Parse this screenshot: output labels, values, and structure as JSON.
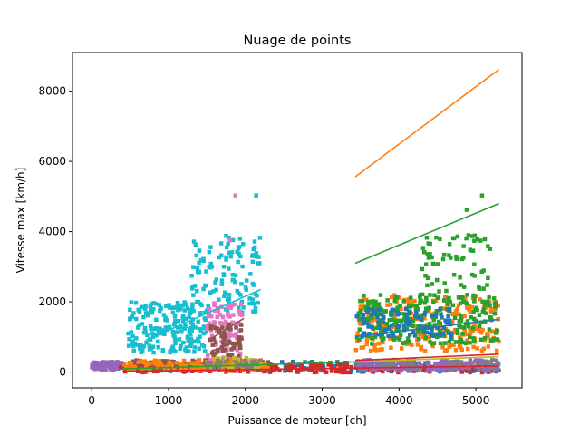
{
  "chart_data": {
    "type": "scatter",
    "title": "Nuage de points",
    "xlabel": "Puissance de moteur [ch]",
    "ylabel": "Vitesse max [km/h]",
    "xlim": [
      -250,
      5600
    ],
    "ylim": [
      -450,
      9100
    ],
    "xticks": [
      0,
      1000,
      2000,
      3000,
      4000,
      5000
    ],
    "yticks": [
      0,
      2000,
      4000,
      6000,
      8000
    ],
    "grid": false,
    "palette": {
      "blue": "#1f77b4",
      "orange": "#ff7f0e",
      "green": "#2ca02c",
      "red": "#d62728",
      "purple": "#9467bd",
      "brown": "#8c564b",
      "pink": "#e377c2",
      "gray": "#7f7f7f",
      "olive": "#bcbd22",
      "cyan": "#17becf"
    },
    "clusters": [
      {
        "color": "purple",
        "x_range": [
          0,
          420
        ],
        "y_range": [
          60,
          290
        ],
        "n": 90
      },
      {
        "color": "cyan",
        "x_range": [
          470,
          1500
        ],
        "y_range": [
          550,
          2000
        ],
        "n": 190
      },
      {
        "color": "cyan",
        "x_range": [
          1300,
          2200
        ],
        "y_range": [
          1700,
          3900
        ],
        "n": 120
      },
      {
        "color": "pink",
        "x_range": [
          1500,
          1960
        ],
        "y_range": [
          280,
          2000
        ],
        "n": 110
      },
      {
        "color": "brown",
        "x_range": [
          1540,
          1960
        ],
        "y_range": [
          400,
          1400
        ],
        "n": 50
      },
      {
        "color": "orange",
        "x_range": [
          3430,
          5300
        ],
        "y_range": [
          600,
          2200
        ],
        "n": 220
      },
      {
        "color": "green",
        "x_range": [
          3450,
          5300
        ],
        "y_range": [
          800,
          2200
        ],
        "n": 260
      },
      {
        "color": "green",
        "x_range": [
          4300,
          5200
        ],
        "y_range": [
          2100,
          3900
        ],
        "n": 70
      },
      {
        "color": "blue",
        "x_range": [
          3440,
          4700
        ],
        "y_range": [
          1000,
          1800
        ],
        "n": 90
      },
      {
        "color": "blue",
        "x_range": [
          370,
          5300
        ],
        "y_range": [
          0,
          300
        ],
        "n": 200
      },
      {
        "color": "red",
        "x_range": [
          370,
          5300
        ],
        "y_range": [
          -10,
          220
        ],
        "n": 220
      },
      {
        "color": "brown",
        "x_range": [
          400,
          2300
        ],
        "y_range": [
          40,
          340
        ],
        "n": 120
      },
      {
        "color": "orange",
        "x_range": [
          400,
          2300
        ],
        "y_range": [
          60,
          330
        ],
        "n": 110
      },
      {
        "color": "purple",
        "x_range": [
          3450,
          5300
        ],
        "y_range": [
          40,
          350
        ],
        "n": 180
      },
      {
        "color": "olive",
        "x_range": [
          1500,
          2200
        ],
        "y_range": [
          100,
          400
        ],
        "n": 40
      },
      {
        "color": "gray",
        "x_range": [
          1500,
          2200
        ],
        "y_range": [
          100,
          350
        ],
        "n": 30
      },
      {
        "color": "gray",
        "x_range": [
          3450,
          5300
        ],
        "y_range": [
          100,
          350
        ],
        "n": 40
      }
    ],
    "outliers": [
      {
        "color": "pink",
        "x": 1870,
        "y": 5030
      },
      {
        "color": "cyan",
        "x": 2140,
        "y": 5030
      },
      {
        "color": "pink",
        "x": 1800,
        "y": 3750
      },
      {
        "color": "green",
        "x": 5080,
        "y": 5030
      },
      {
        "color": "green",
        "x": 4880,
        "y": 4620
      }
    ],
    "fit_lines": [
      {
        "color": "orange",
        "x": [
          3430,
          5300
        ],
        "y": [
          5560,
          8620
        ]
      },
      {
        "color": "green",
        "x": [
          3430,
          5300
        ],
        "y": [
          3100,
          4800
        ]
      },
      {
        "color": "blue",
        "x": [
          3430,
          5300
        ],
        "y": [
          1010,
          1500
        ]
      },
      {
        "color": "red",
        "x": [
          3430,
          5300
        ],
        "y": [
          330,
          510
        ]
      },
      {
        "color": "olive",
        "x": [
          3430,
          5300
        ],
        "y": [
          290,
          440
        ]
      },
      {
        "color": "green",
        "x": [
          400,
          3430
        ],
        "y": [
          90,
          290
        ]
      },
      {
        "color": "red",
        "x": [
          400,
          5300
        ],
        "y": [
          20,
          170
        ]
      },
      {
        "color": "purple",
        "x": [
          0,
          420
        ],
        "y": [
          110,
          270
        ]
      },
      {
        "color": "cyan",
        "x": [
          700,
          2200
        ],
        "y": [
          900,
          2350
        ]
      },
      {
        "color": "brown",
        "x": [
          1560,
          1980
        ],
        "y": [
          600,
          940
        ]
      },
      {
        "color": "brown",
        "x": [
          1560,
          1980
        ],
        "y": [
          960,
          1530
        ]
      }
    ]
  }
}
